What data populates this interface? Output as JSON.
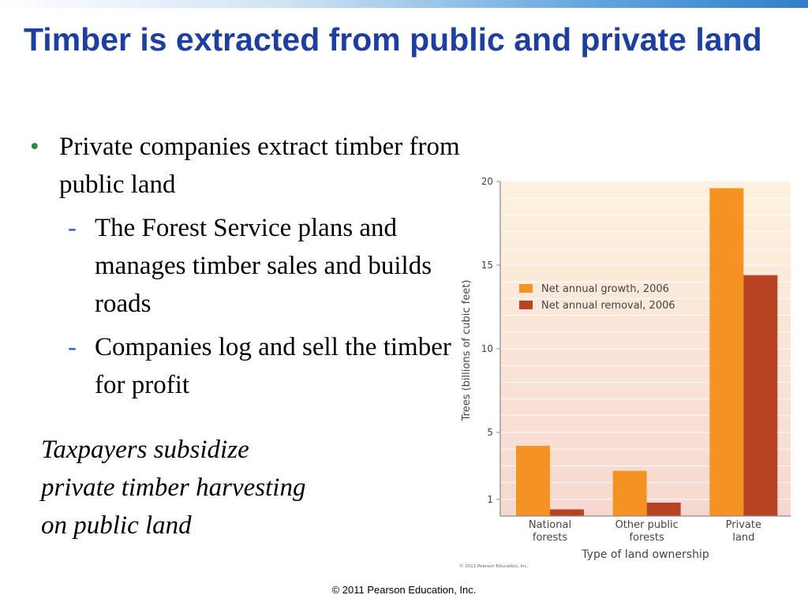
{
  "slide": {
    "title": "Timber is extracted from public and private land",
    "bullet": "Private companies extract timber from public land",
    "subbullets": [
      "The Forest Service plans and manages timber sales and builds roads",
      "Companies log and sell the timber for profit"
    ],
    "note": "Taxpayers subsidize private timber harvesting on public land",
    "footer": "© 2011 Pearson Education, Inc."
  },
  "chart_data": {
    "type": "bar",
    "categories": [
      "National\nforests",
      "Other public\nforests",
      "Private\nland"
    ],
    "series": [
      {
        "name": "Net annual growth, 2006",
        "values": [
          4.2,
          2.7,
          19.6
        ],
        "color": "#f39321"
      },
      {
        "name": "Net annual removal, 2006",
        "values": [
          0.4,
          0.8,
          14.4
        ],
        "color": "#b84424"
      }
    ],
    "ylabel": "Trees (billions of cubic feet)",
    "xlabel": "Type of land ownership",
    "yticks": [
      1,
      5,
      10,
      15,
      20
    ],
    "ylim": [
      0,
      20
    ],
    "legend": "upper-left",
    "credit": "© 2011 Pearson Education, Inc."
  }
}
